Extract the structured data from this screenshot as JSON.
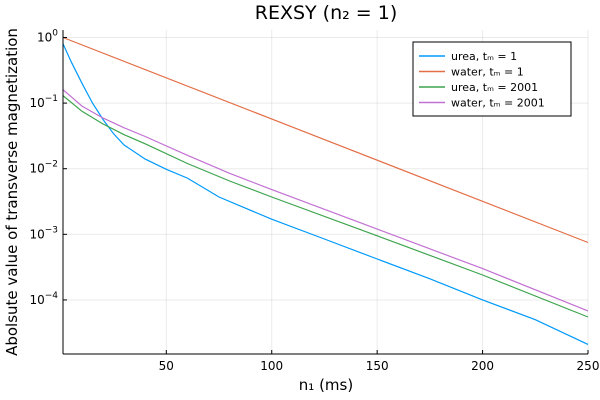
{
  "chart_data": {
    "type": "line",
    "title": "REXSY (n₂ = 1)",
    "xlabel": "n₁ (ms)",
    "ylabel": "Abolsute value of transverse magnetization",
    "xlim": [
      1,
      250
    ],
    "ylim": [
      1.5e-05,
      1.3
    ],
    "yscale": "log",
    "grid": true,
    "legend_position": "top-right",
    "x_ticks": [
      {
        "value": 50,
        "label": "50"
      },
      {
        "value": 100,
        "label": "100"
      },
      {
        "value": 150,
        "label": "150"
      },
      {
        "value": 200,
        "label": "200"
      },
      {
        "value": 250,
        "label": "250"
      }
    ],
    "y_ticks": [
      {
        "value": 0.0001,
        "base": "10",
        "exp": "−4"
      },
      {
        "value": 0.001,
        "base": "10",
        "exp": "−3"
      },
      {
        "value": 0.01,
        "base": "10",
        "exp": "−2"
      },
      {
        "value": 0.1,
        "base": "10",
        "exp": "−1"
      },
      {
        "value": 1,
        "base": "10",
        "exp": "0"
      }
    ],
    "series": [
      {
        "name": "urea, tₘ = 1",
        "color": "#009AFA",
        "points": [
          [
            1,
            0.8
          ],
          [
            5,
            0.42
          ],
          [
            10,
            0.2
          ],
          [
            15,
            0.1
          ],
          [
            20,
            0.056
          ],
          [
            25,
            0.034
          ],
          [
            30,
            0.023
          ],
          [
            40,
            0.014
          ],
          [
            50,
            0.0098
          ],
          [
            60,
            0.0072
          ],
          [
            75,
            0.0037
          ],
          [
            100,
            0.0017
          ],
          [
            125,
            0.00085
          ],
          [
            150,
            0.00042
          ],
          [
            175,
            0.00021
          ],
          [
            200,
            0.0001
          ],
          [
            225,
            5e-05
          ],
          [
            250,
            2.1e-05
          ]
        ]
      },
      {
        "name": "water, tₘ = 1",
        "color": "#E36F47",
        "points": [
          [
            1,
            1.0
          ],
          [
            250,
            0.00075
          ]
        ]
      },
      {
        "name": "urea, tₘ = 2001",
        "color": "#3EA44E",
        "points": [
          [
            1,
            0.13
          ],
          [
            10,
            0.075
          ],
          [
            20,
            0.048
          ],
          [
            30,
            0.033
          ],
          [
            40,
            0.024
          ],
          [
            60,
            0.012
          ],
          [
            80,
            0.0065
          ],
          [
            100,
            0.0037
          ],
          [
            150,
            0.00095
          ],
          [
            200,
            0.00024
          ],
          [
            250,
            5.5e-05
          ]
        ]
      },
      {
        "name": "water, tₘ = 2001",
        "color": "#C271D2",
        "points": [
          [
            1,
            0.16
          ],
          [
            10,
            0.09
          ],
          [
            20,
            0.059
          ],
          [
            30,
            0.042
          ],
          [
            40,
            0.031
          ],
          [
            60,
            0.016
          ],
          [
            80,
            0.0085
          ],
          [
            100,
            0.0048
          ],
          [
            150,
            0.0012
          ],
          [
            200,
            0.0003
          ],
          [
            250,
            6.8e-05
          ]
        ]
      }
    ]
  }
}
